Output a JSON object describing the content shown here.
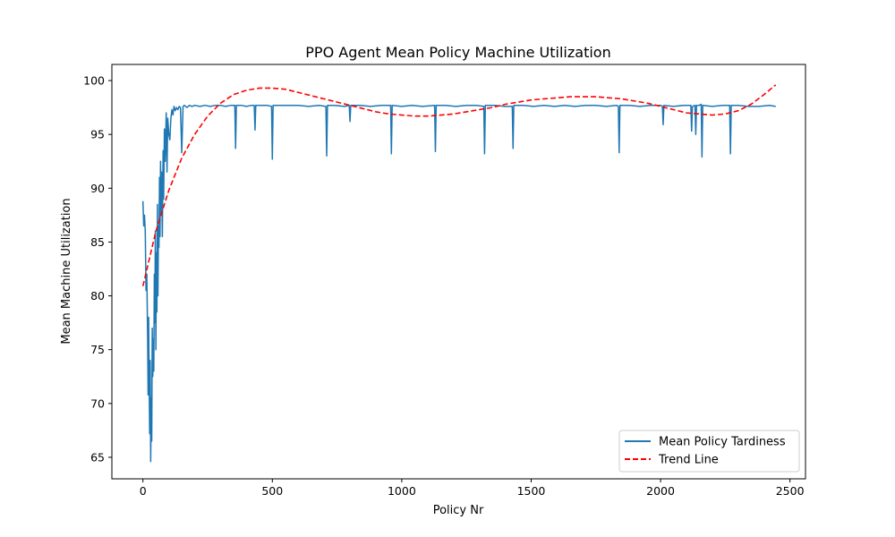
{
  "chart_data": {
    "type": "line",
    "title": "PPO Agent Mean Policy Machine Utilization",
    "xlabel": "Policy Nr",
    "ylabel": "Mean Machine Utilization",
    "xlim": [
      -120,
      2560
    ],
    "ylim": [
      63,
      101.5
    ],
    "xticks": [
      0,
      500,
      1000,
      1500,
      2000,
      2500
    ],
    "yticks": [
      65,
      70,
      75,
      80,
      85,
      90,
      95,
      100
    ],
    "legend_position": "lower-right",
    "grid": false,
    "colors": {
      "series": "#1f77b4",
      "trend": "#ff0000"
    },
    "series": [
      {
        "name": "Mean Policy Tardiness",
        "style": "solid",
        "x": [
          0,
          3,
          6,
          9,
          12,
          15,
          18,
          20,
          22,
          24,
          26,
          28,
          30,
          32,
          34,
          36,
          38,
          40,
          42,
          44,
          46,
          48,
          50,
          52,
          54,
          56,
          58,
          60,
          62,
          64,
          66,
          68,
          70,
          72,
          75,
          78,
          80,
          83,
          86,
          90,
          93,
          96,
          100,
          104,
          108,
          112,
          116,
          120,
          125,
          130,
          135,
          140,
          145,
          150,
          155,
          160,
          170,
          180,
          190,
          200,
          220,
          240,
          260,
          280,
          300,
          320,
          340,
          355,
          358,
          361,
          380,
          400,
          420,
          430,
          433,
          436,
          460,
          480,
          497,
          500,
          503,
          520,
          560,
          600,
          640,
          680,
          707,
          710,
          713,
          740,
          780,
          797,
          800,
          803,
          840,
          880,
          920,
          957,
          960,
          963,
          1000,
          1040,
          1080,
          1127,
          1130,
          1133,
          1170,
          1210,
          1250,
          1290,
          1317,
          1320,
          1323,
          1360,
          1400,
          1427,
          1430,
          1433,
          1470,
          1510,
          1550,
          1590,
          1630,
          1670,
          1710,
          1750,
          1790,
          1830,
          1837,
          1840,
          1843,
          1880,
          1920,
          1960,
          2000,
          2007,
          2010,
          2013,
          2050,
          2090,
          2117,
          2120,
          2123,
          2133,
          2136,
          2139,
          2150,
          2157,
          2160,
          2163,
          2200,
          2240,
          2267,
          2270,
          2273,
          2300,
          2340,
          2380,
          2420,
          2445
        ],
        "y": [
          88.8,
          86.5,
          87.5,
          86.0,
          80.5,
          82.0,
          76.5,
          70.8,
          78.0,
          72.5,
          67.2,
          74.0,
          64.6,
          70.5,
          66.5,
          77.0,
          72.5,
          76.0,
          73.0,
          82.0,
          77.5,
          86.0,
          75.0,
          84.0,
          78.5,
          88.5,
          80.0,
          86.5,
          84.5,
          91.0,
          85.5,
          92.5,
          87.5,
          91.5,
          85.5,
          93.5,
          89.0,
          95.5,
          92.5,
          97.0,
          91.5,
          96.5,
          95.0,
          94.5,
          96.5,
          97.3,
          96.8,
          97.6,
          97.2,
          97.5,
          97.3,
          97.6,
          97.5,
          93.3,
          97.6,
          97.7,
          97.5,
          97.7,
          97.6,
          97.7,
          97.6,
          97.7,
          97.6,
          97.7,
          97.7,
          97.6,
          97.7,
          97.7,
          93.7,
          97.7,
          97.7,
          97.6,
          97.7,
          97.7,
          95.4,
          97.7,
          97.7,
          97.7,
          97.6,
          92.7,
          97.7,
          97.7,
          97.7,
          97.7,
          97.6,
          97.7,
          97.6,
          93.0,
          97.7,
          97.7,
          97.6,
          97.7,
          96.2,
          97.7,
          97.7,
          97.6,
          97.7,
          97.7,
          93.2,
          97.7,
          97.6,
          97.7,
          97.6,
          97.7,
          93.4,
          97.7,
          97.7,
          97.6,
          97.7,
          97.7,
          97.6,
          93.2,
          97.7,
          97.7,
          97.6,
          97.6,
          93.7,
          97.7,
          97.7,
          97.6,
          97.7,
          97.6,
          97.7,
          97.6,
          97.7,
          97.7,
          97.6,
          97.7,
          97.6,
          93.3,
          97.7,
          97.7,
          97.6,
          97.7,
          97.7,
          97.6,
          95.9,
          97.7,
          97.6,
          97.7,
          97.7,
          95.3,
          97.6,
          97.7,
          95.0,
          97.7,
          97.7,
          97.8,
          92.9,
          97.7,
          97.6,
          97.7,
          97.7,
          93.2,
          97.7,
          97.7,
          97.6,
          97.6,
          97.7,
          97.6
        ]
      },
      {
        "name": "Trend Line",
        "style": "dashed",
        "x": [
          0,
          50,
          100,
          150,
          200,
          250,
          300,
          350,
          400,
          450,
          500,
          550,
          600,
          650,
          700,
          750,
          800,
          850,
          900,
          950,
          1000,
          1050,
          1100,
          1150,
          1200,
          1250,
          1300,
          1350,
          1400,
          1450,
          1500,
          1550,
          1600,
          1650,
          1700,
          1750,
          1800,
          1850,
          1900,
          1950,
          2000,
          2050,
          2100,
          2150,
          2200,
          2250,
          2300,
          2350,
          2400,
          2445
        ],
        "y": [
          80.9,
          86.0,
          89.8,
          92.8,
          95.0,
          96.7,
          97.9,
          98.7,
          99.1,
          99.3,
          99.3,
          99.2,
          98.9,
          98.6,
          98.3,
          98.0,
          97.7,
          97.4,
          97.1,
          96.9,
          96.8,
          96.7,
          96.7,
          96.8,
          96.9,
          97.1,
          97.3,
          97.5,
          97.8,
          98.0,
          98.2,
          98.3,
          98.4,
          98.5,
          98.5,
          98.5,
          98.4,
          98.3,
          98.1,
          97.9,
          97.6,
          97.3,
          97.0,
          96.9,
          96.8,
          96.9,
          97.2,
          97.8,
          98.7,
          99.6
        ]
      }
    ]
  }
}
